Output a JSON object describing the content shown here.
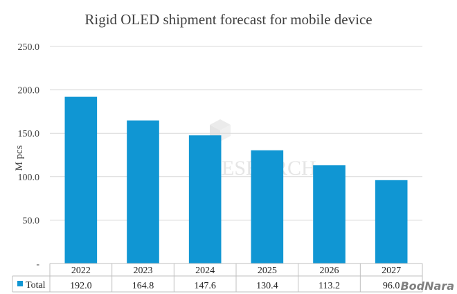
{
  "chart_data": {
    "type": "bar",
    "title": "Rigid OLED shipment forecast for mobile device",
    "ylabel": "M pcs",
    "xlabel": "",
    "categories": [
      "2022",
      "2023",
      "2024",
      "2025",
      "2026",
      "2027"
    ],
    "series": [
      {
        "name": "Total",
        "values": [
          192.0,
          164.8,
          147.6,
          130.4,
          113.2,
          96.0
        ],
        "labels": [
          "192.0",
          "164.8",
          "147.6",
          "130.4",
          "113.2",
          "96.0"
        ],
        "color": "#1096d3"
      }
    ],
    "ylim": [
      0,
      250
    ],
    "yticks": [
      0,
      50,
      100,
      150,
      200,
      250
    ],
    "ytick_labels": [
      "-",
      "50.0",
      "100.0",
      "150.0",
      "200.0",
      "250.0"
    ],
    "grid": true,
    "legend": "data-table-bottom"
  },
  "watermark": "RESEARCH",
  "brand": "BodNara"
}
